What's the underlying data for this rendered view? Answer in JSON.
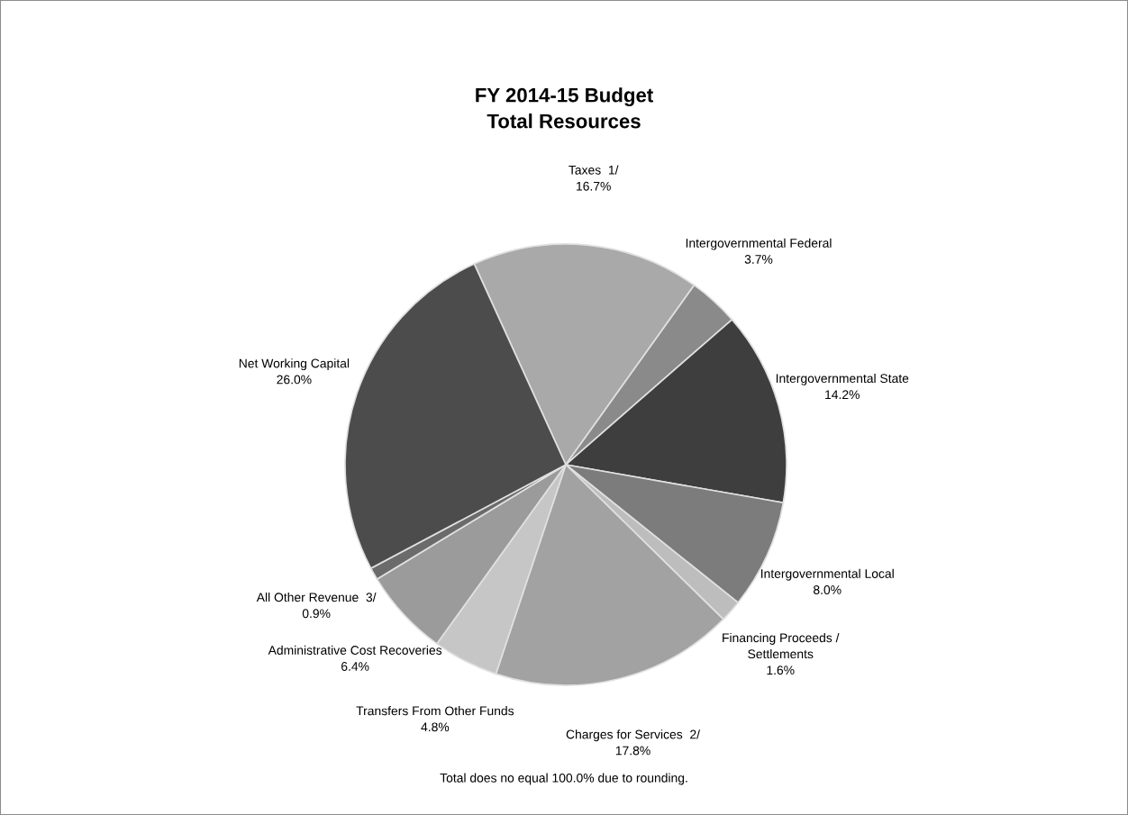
{
  "chart_data": {
    "type": "pie",
    "title": "FY 2014-15 Budget\nTotal Resources",
    "categories": [
      "Taxes  1/",
      "Intergovernmental Federal",
      "Intergovernmental State",
      "Intergovernmental Local",
      "Financing Proceeds /\nSettlements",
      "Charges for Services  2/",
      "Transfers From Other Funds",
      "Administrative Cost Recoveries",
      "All Other Revenue  3/",
      "Net Working Capital"
    ],
    "values": [
      16.7,
      3.7,
      14.2,
      8.0,
      1.6,
      17.8,
      4.8,
      6.4,
      0.9,
      26.0
    ],
    "value_labels": [
      "16.7%",
      "3.7%",
      "14.2%",
      "8.0%",
      "1.6%",
      "17.8%",
      "4.8%",
      "6.4%",
      "0.9%",
      "26.0%"
    ],
    "colors": [
      "#a9a9a9",
      "#8a8a8a",
      "#3e3e3e",
      "#7c7c7c",
      "#bdbdbd",
      "#a2a2a2",
      "#c6c6c6",
      "#9b9b9b",
      "#6b6b6b",
      "#4c4c4c"
    ],
    "annotations": [
      "Total does no equal 100.0% due to rounding."
    ],
    "legend": false
  }
}
